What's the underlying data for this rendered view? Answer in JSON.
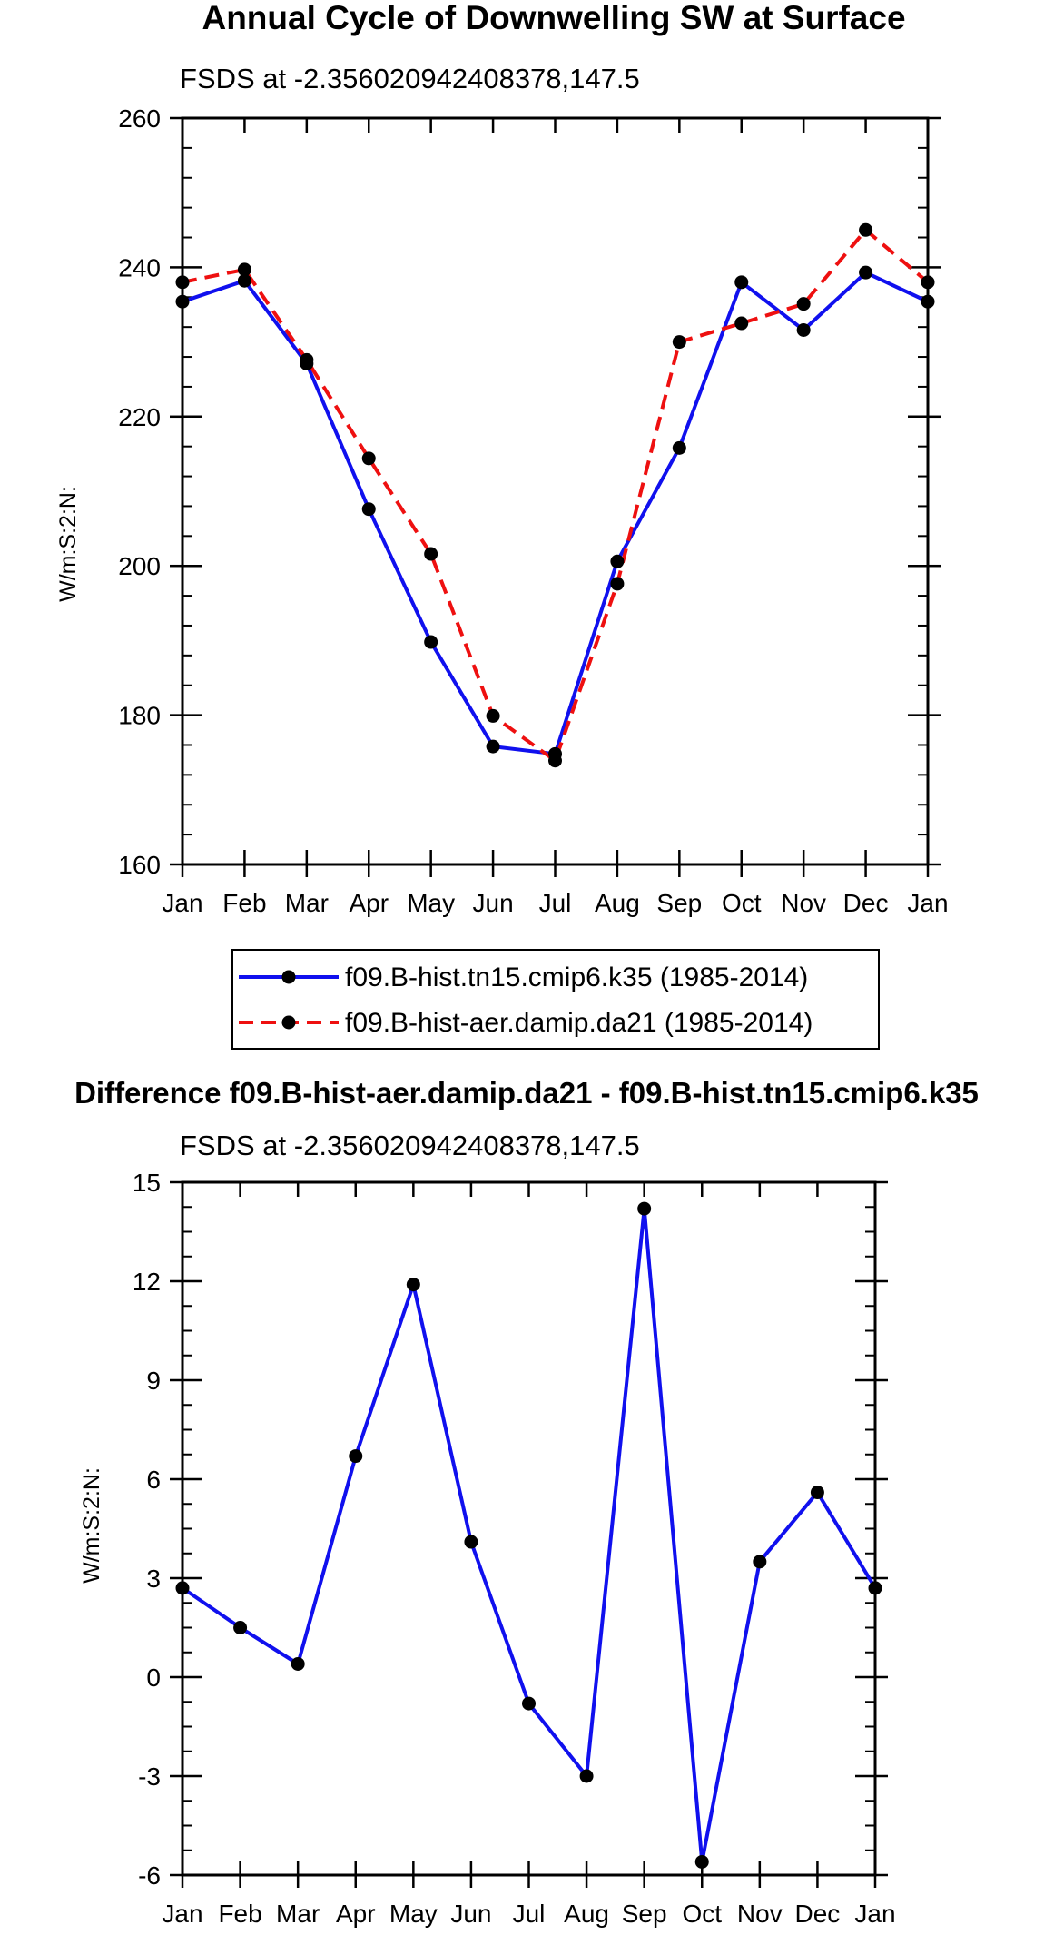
{
  "colors": {
    "control": "#1010ee",
    "experiment": "#ee1010",
    "marker": "#000000",
    "axis": "#000000"
  },
  "chart_data": [
    {
      "type": "line",
      "title": "Annual Cycle of Downwelling SW at Surface",
      "subtitle": "FSDS at -2.356020942408378,147.5",
      "xlabel": "",
      "ylabel": "W/m:S:2:N:",
      "categories": [
        "Jan",
        "Feb",
        "Mar",
        "Apr",
        "May",
        "Jun",
        "Jul",
        "Aug",
        "Sep",
        "Oct",
        "Nov",
        "Dec",
        "Jan"
      ],
      "ylim": [
        160,
        260
      ],
      "yticks": [
        "160",
        "180",
        "200",
        "220",
        "240",
        "260"
      ],
      "ytick_values": [
        160,
        180,
        200,
        220,
        240,
        260
      ],
      "grid": false,
      "legend_position": "bottom",
      "series": [
        {
          "name": "f09.B-hist.tn15.cmip6.k35 (1985-2014)",
          "style": "solid",
          "values": [
            235.4,
            238.2,
            227.1,
            207.6,
            189.8,
            175.8,
            174.8,
            200.6,
            215.8,
            238.0,
            231.6,
            239.3,
            235.4
          ]
        },
        {
          "name": "f09.B-hist-aer.damip.da21 (1985-2014)",
          "style": "dashed",
          "values": [
            238.0,
            239.7,
            227.6,
            214.4,
            201.6,
            179.9,
            173.9,
            197.6,
            230.0,
            232.5,
            235.1,
            245.0,
            238.0
          ]
        }
      ]
    },
    {
      "type": "line",
      "title": "Difference f09.B-hist-aer.damip.da21 - f09.B-hist.tn15.cmip6.k35",
      "subtitle": "FSDS at -2.356020942408378,147.5",
      "xlabel": "",
      "ylabel": "W/m:S:2:N:",
      "categories": [
        "Jan",
        "Feb",
        "Mar",
        "Apr",
        "May",
        "Jun",
        "Jul",
        "Aug",
        "Sep",
        "Oct",
        "Nov",
        "Dec",
        "Jan"
      ],
      "ylim": [
        -6,
        15
      ],
      "yticks": [
        "-6",
        "-3",
        "0",
        "3",
        "6",
        "9",
        "12",
        "15"
      ],
      "ytick_values": [
        -6,
        -3,
        0,
        3,
        6,
        9,
        12,
        15
      ],
      "grid": false,
      "series": [
        {
          "name": "Difference",
          "style": "solid",
          "values": [
            2.7,
            1.5,
            0.4,
            6.7,
            11.9,
            4.1,
            -0.8,
            -3.0,
            14.2,
            -5.6,
            3.5,
            5.6,
            2.7
          ]
        }
      ]
    }
  ]
}
